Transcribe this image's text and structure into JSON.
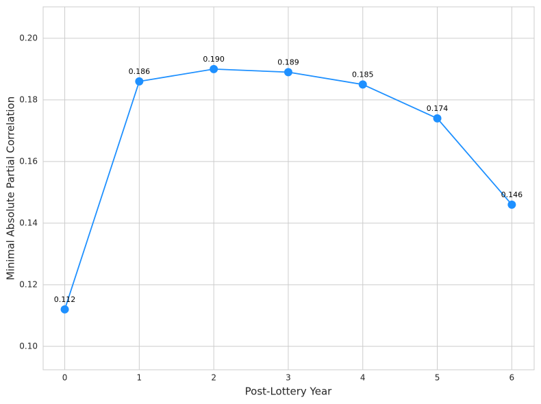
{
  "chart_data": {
    "type": "line",
    "x_label": "Post-Lottery Year",
    "y_label": "Minimal Absolute Partial Correlation",
    "x": [
      0,
      1,
      2,
      3,
      4,
      5,
      6
    ],
    "series": [
      {
        "color": "#1e90ff",
        "values": [
          0.112,
          0.186,
          0.19,
          0.189,
          0.185,
          0.174,
          0.146
        ],
        "value_labels": [
          "0.112",
          "0.186",
          "0.190",
          "0.189",
          "0.185",
          "0.174",
          "0.146"
        ]
      }
    ],
    "xlim": [
      -0.29,
      6.3
    ],
    "xticks": [
      0,
      1,
      2,
      3,
      4,
      5,
      6
    ],
    "ylim": [
      0.0924,
      0.2102
    ],
    "yticks": [
      {
        "value": 0.1,
        "label": "0.10"
      },
      0.12,
      0.14,
      0.16,
      0.18,
      {
        "value": 0.2,
        "label": "0.20"
      }
    ],
    "grid": true
  }
}
